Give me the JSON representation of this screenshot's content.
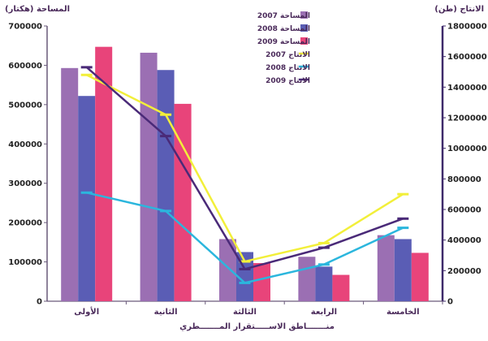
{
  "chart_data": {
    "type": "bar",
    "ylabel_left": "المساحة (هكتار)",
    "ylabel_right": "الانتاج (طن)",
    "xlabel": "منـــــــاطق الاســـــتقرار المـــــــطري",
    "categories": [
      "الأولى",
      "الثانية",
      "الثالثة",
      "الرابعة",
      "الخامسة"
    ],
    "ylim_left": [
      0,
      700000
    ],
    "yticks_left": [
      "0",
      "100000",
      "200000",
      "300000",
      "400000",
      "500000",
      "600000",
      "700000"
    ],
    "ylim_right": [
      0,
      1800000
    ],
    "yticks_right": [
      "0",
      "200000",
      "400000",
      "600000",
      "800000",
      "1000000",
      "1200000",
      "1400000",
      "1600000",
      "1800000"
    ],
    "bar_series": [
      {
        "name": "المساحة 2007",
        "color": "#9b6fb3",
        "values": [
          593000,
          632000,
          158000,
          113000,
          168000
        ]
      },
      {
        "name": "المساحة 2008",
        "color": "#5a5db5",
        "values": [
          522000,
          588000,
          125000,
          88000,
          158000
        ]
      },
      {
        "name": "المساحة 2009",
        "color": "#e8447a",
        "values": [
          647000,
          502000,
          97000,
          67000,
          123000
        ]
      }
    ],
    "line_series": [
      {
        "name": "الانتاج 2007",
        "color": "#f2ef3a",
        "values": [
          1480000,
          1220000,
          260000,
          380000,
          700000
        ]
      },
      {
        "name": "الانتاج 2008",
        "color": "#2bb6dd",
        "values": [
          710000,
          590000,
          120000,
          240000,
          480000
        ]
      },
      {
        "name": "الانتاج 2009",
        "color": "#4a2a78",
        "values": [
          1530000,
          1080000,
          210000,
          350000,
          540000
        ]
      }
    ],
    "legend_position": "top-right",
    "grid": false
  }
}
